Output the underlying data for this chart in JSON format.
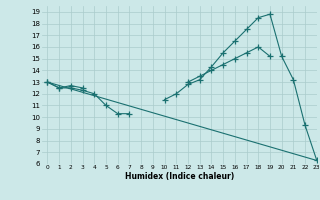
{
  "xlabel": "Humidex (Indice chaleur)",
  "bg_color": "#cce8e8",
  "grid_color": "#aacccc",
  "line_color": "#1a7070",
  "line1_x": [
    0,
    1,
    2,
    3,
    4,
    5,
    6,
    7,
    10,
    11,
    12,
    13,
    14,
    15,
    16,
    17,
    18,
    19,
    20,
    21,
    22,
    23
  ],
  "line1_y": [
    13.0,
    12.5,
    12.5,
    12.3,
    12.0,
    11.0,
    10.3,
    10.3,
    11.5,
    12.0,
    12.8,
    13.2,
    14.3,
    15.5,
    16.5,
    17.5,
    18.5,
    18.8,
    15.2,
    13.2,
    9.3,
    6.3
  ],
  "line2_x": [
    0,
    1,
    2,
    3,
    12,
    13,
    14,
    15,
    16,
    17,
    18,
    19
  ],
  "line2_y": [
    13.0,
    12.5,
    12.7,
    12.5,
    13.0,
    13.5,
    14.0,
    14.5,
    15.0,
    15.5,
    16.0,
    15.2
  ],
  "line3_x": [
    0,
    23
  ],
  "line3_y": [
    13.0,
    6.3
  ],
  "xlim": [
    -0.5,
    23
  ],
  "ylim": [
    6,
    19.5
  ],
  "xticks": [
    0,
    1,
    2,
    3,
    4,
    5,
    6,
    7,
    8,
    9,
    10,
    11,
    12,
    13,
    14,
    15,
    16,
    17,
    18,
    19,
    20,
    21,
    22,
    23
  ],
  "yticks": [
    6,
    7,
    8,
    9,
    10,
    11,
    12,
    13,
    14,
    15,
    16,
    17,
    18,
    19
  ]
}
